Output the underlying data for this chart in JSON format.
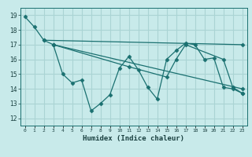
{
  "title": "",
  "xlabel": "Humidex (Indice chaleur)",
  "bg_color": "#c8eaea",
  "grid_color": "#aad4d4",
  "line_color": "#1a7070",
  "xlim": [
    -0.5,
    23.5
  ],
  "ylim": [
    11.5,
    19.5
  ],
  "yticks": [
    12,
    13,
    14,
    15,
    16,
    17,
    18,
    19
  ],
  "xticks": [
    0,
    1,
    2,
    3,
    4,
    5,
    6,
    7,
    8,
    9,
    10,
    11,
    12,
    13,
    14,
    15,
    16,
    17,
    18,
    19,
    20,
    21,
    22,
    23
  ],
  "xtick_labels": [
    "0",
    "1",
    "2",
    "3",
    "4",
    "5",
    "6",
    "7",
    "8",
    "9",
    "10",
    "11",
    "12",
    "13",
    "14",
    "15",
    "16",
    "17",
    "18",
    "19",
    "20",
    "21",
    "22",
    "23"
  ],
  "line1": [
    [
      0,
      18.9
    ],
    [
      1,
      18.2
    ],
    [
      2,
      17.3
    ],
    [
      3,
      17.0
    ],
    [
      4,
      15.0
    ],
    [
      5,
      14.4
    ],
    [
      6,
      14.6
    ],
    [
      7,
      12.5
    ],
    [
      8,
      13.0
    ],
    [
      9,
      13.6
    ],
    [
      10,
      15.4
    ],
    [
      11,
      16.2
    ],
    [
      12,
      15.3
    ],
    [
      13,
      14.1
    ],
    [
      14,
      13.3
    ],
    [
      15,
      16.0
    ],
    [
      16,
      16.6
    ],
    [
      17,
      17.1
    ],
    [
      18,
      17.0
    ],
    [
      19,
      16.0
    ],
    [
      20,
      16.1
    ],
    [
      21,
      14.1
    ],
    [
      22,
      14.0
    ],
    [
      23,
      13.7
    ]
  ],
  "line2": [
    [
      2,
      17.3
    ],
    [
      23,
      17.0
    ]
  ],
  "line3": [
    [
      3,
      17.0
    ],
    [
      23,
      14.0
    ]
  ],
  "line4": [
    [
      3,
      17.0
    ],
    [
      11,
      15.5
    ],
    [
      15,
      14.8
    ],
    [
      16,
      16.0
    ],
    [
      17,
      17.0
    ],
    [
      21,
      16.0
    ],
    [
      22,
      14.1
    ],
    [
      23,
      13.7
    ]
  ]
}
